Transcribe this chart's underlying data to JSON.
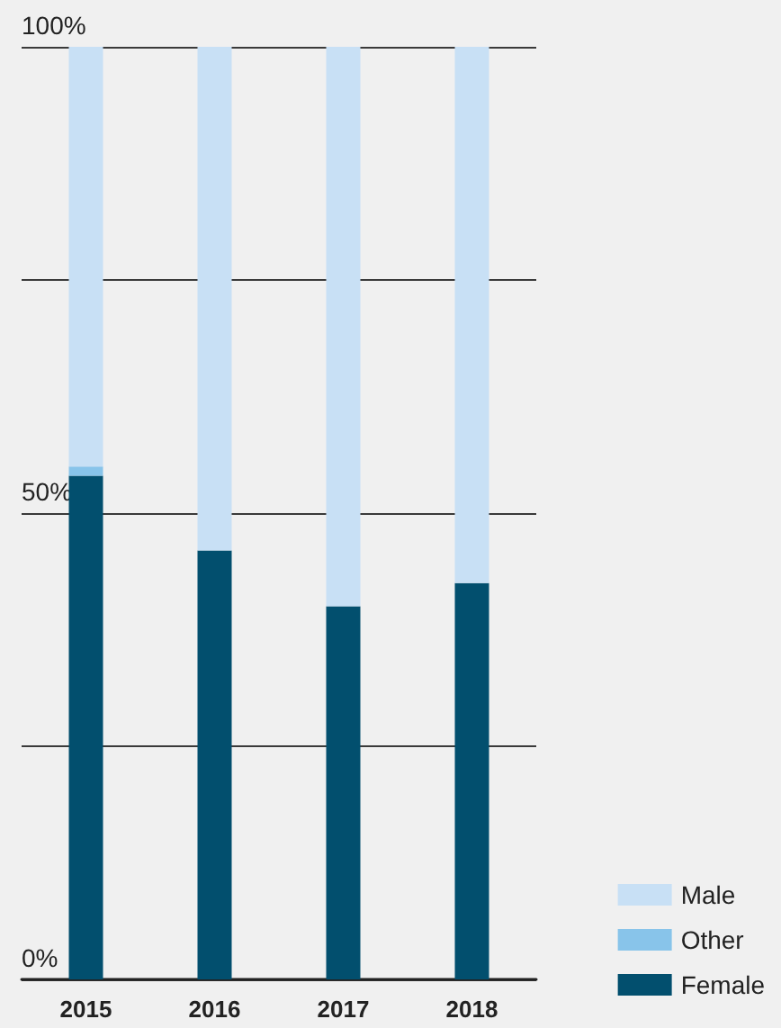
{
  "chart_data": {
    "type": "bar",
    "stacked": true,
    "categories": [
      "2015",
      "2016",
      "2017",
      "2018"
    ],
    "series": [
      {
        "name": "Female",
        "color": "#024f6e",
        "values": [
          54,
          46,
          40,
          42.5
        ]
      },
      {
        "name": "Other",
        "color": "#88c4ea",
        "values": [
          1,
          0,
          0,
          0
        ]
      },
      {
        "name": "Male",
        "color": "#c8e0f5",
        "values": [
          45,
          54,
          60,
          57.5
        ]
      }
    ],
    "ylim": [
      0,
      100
    ],
    "yticks": [
      {
        "value": 0,
        "label": "0%"
      },
      {
        "value": 25,
        "label": null
      },
      {
        "value": 50,
        "label": "50%"
      },
      {
        "value": 75,
        "label": null
      },
      {
        "value": 100,
        "label": "100%"
      }
    ],
    "grid": "y",
    "legend": "bottom right"
  }
}
